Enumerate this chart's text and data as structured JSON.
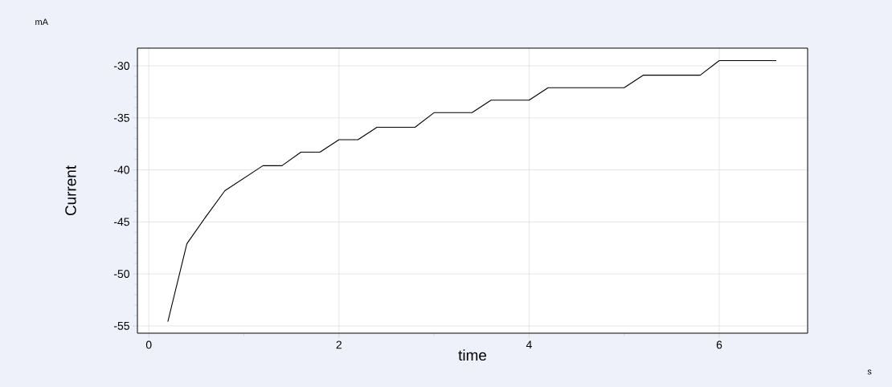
{
  "chart_data": {
    "type": "line",
    "xlabel": "time",
    "ylabel": "Current",
    "annotations": [
      "mA",
      "s"
    ],
    "x": [
      0.2,
      0.4,
      0.6,
      0.8,
      1.0,
      1.2,
      1.4,
      1.6,
      1.8,
      2.0,
      2.2,
      2.4,
      2.6,
      2.8,
      3.0,
      3.2,
      3.4,
      3.6,
      3.8,
      4.0,
      4.2,
      4.4,
      4.6,
      4.8,
      5.0,
      5.2,
      5.4,
      5.6,
      5.8,
      6.0,
      6.2,
      6.4,
      6.6
    ],
    "series": [
      {
        "color": "#000000",
        "values": [
          -54.6,
          -47.1,
          -44.5,
          -42.0,
          -40.8,
          -39.6,
          -39.6,
          -38.3,
          -38.3,
          -37.1,
          -37.1,
          -35.9,
          -35.9,
          -35.9,
          -34.5,
          -34.5,
          -34.5,
          -33.3,
          -33.3,
          -33.3,
          -32.1,
          -32.1,
          -32.1,
          -32.1,
          -32.1,
          -30.9,
          -30.9,
          -30.9,
          -30.9,
          -29.5,
          -29.5,
          -29.5,
          -29.5
        ]
      }
    ],
    "xlim": [
      -0.12,
      6.93
    ],
    "ylim": [
      -55.7,
      -28.3
    ],
    "xticks": [
      0,
      2,
      4,
      6
    ],
    "yticks": [
      -55,
      -50,
      -45,
      -40,
      -35,
      -30
    ],
    "grid": true,
    "marker": "none",
    "line_style": "solid"
  }
}
